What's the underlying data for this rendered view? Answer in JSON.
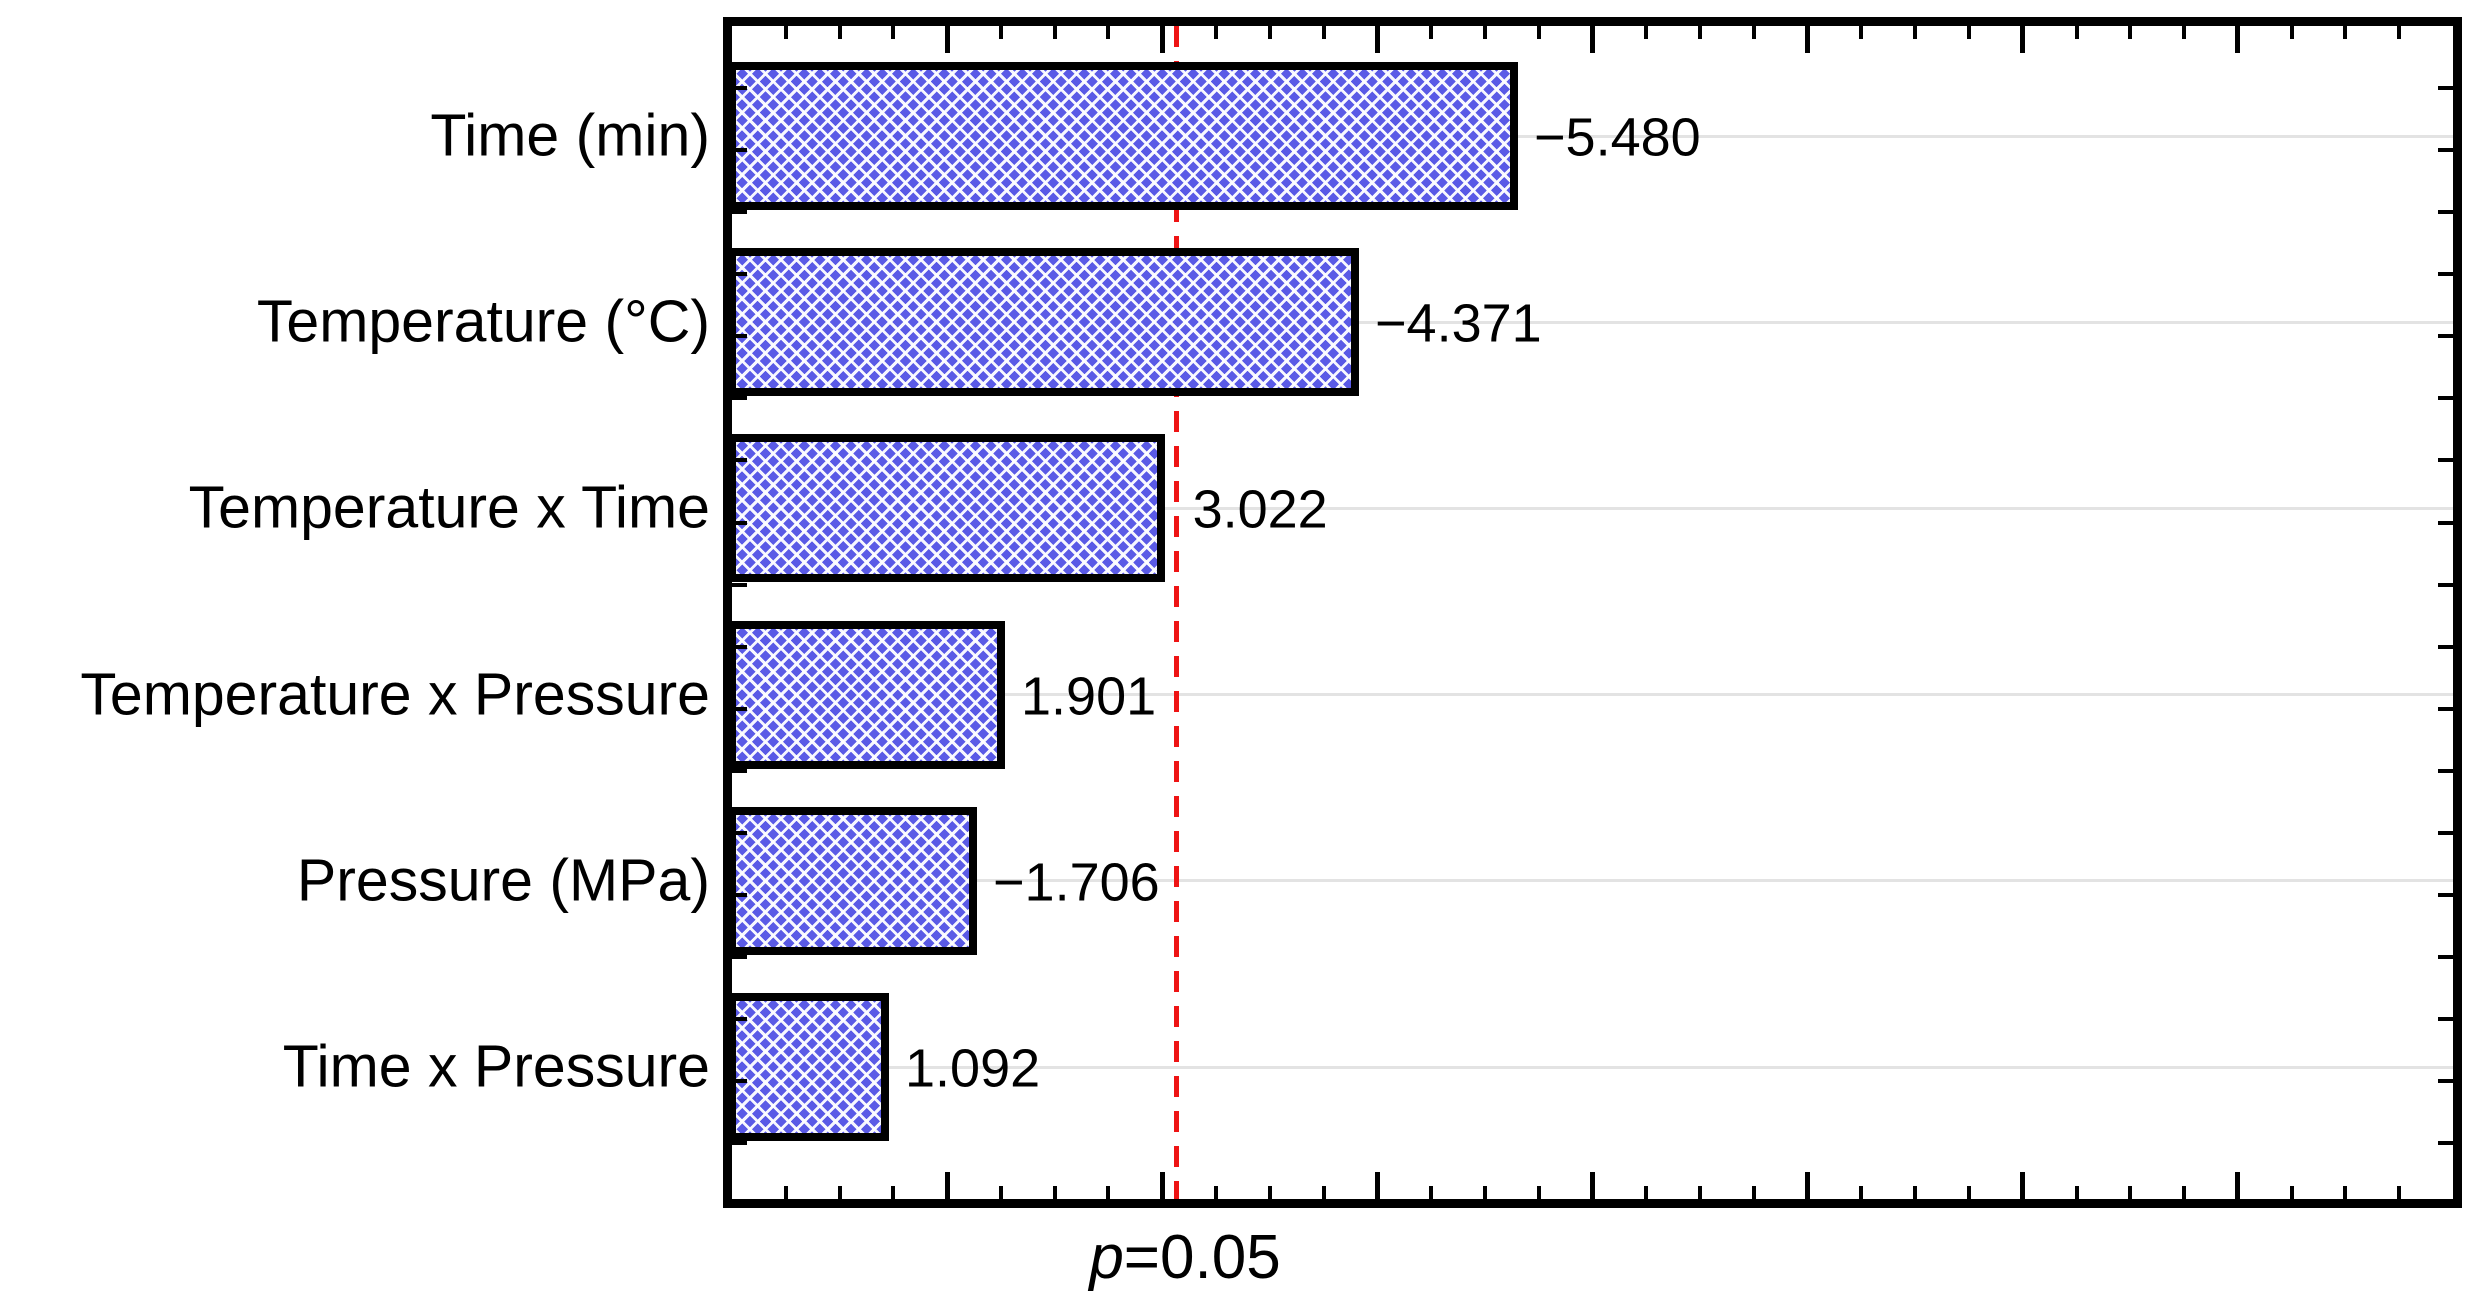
{
  "figure": {
    "background": "#ffffff",
    "title": ""
  },
  "chart_data": {
    "type": "bar",
    "orientation": "horizontal",
    "title": "",
    "xlabel": "",
    "ylabel": "",
    "categories": [
      "Time (min)",
      "Temperature (°C)",
      "Temperature x Time",
      "Temperature x Pressure",
      "Pressure (MPa)",
      "Time x Pressure"
    ],
    "values": [
      -5.48,
      -4.371,
      3.022,
      1.901,
      -1.706,
      1.092
    ],
    "bar_lengths_abs": [
      5.48,
      4.371,
      3.022,
      1.901,
      1.706,
      1.092
    ],
    "value_labels": [
      "−5.480",
      "−4.371",
      "3.022",
      "1.901",
      "−1.706",
      "1.092"
    ],
    "x_axis": {
      "min": 0,
      "max": 12,
      "major_tick_step": 1.5,
      "minor_ticks_per_major": 4,
      "tick_labels_shown": false,
      "ticks_mirrored_top": true
    },
    "y_axis": {
      "tick_labels_shown": false,
      "minor_ticks_per_category": 3,
      "ticks_mirrored_right": true
    },
    "gridlines": {
      "horizontal_at_category_centers": true,
      "color": "#e3e3e3"
    },
    "reference_line": {
      "x": 3.1,
      "label": "p=0.05",
      "label_prefix": "p",
      "label_suffix": "=0.05",
      "style": "dashed",
      "color": "#ee1414"
    },
    "bar_style": {
      "fill": "#5a5ae6",
      "pattern": "white-diagonal-crosshatch",
      "border": "#000000"
    },
    "legend": null
  }
}
